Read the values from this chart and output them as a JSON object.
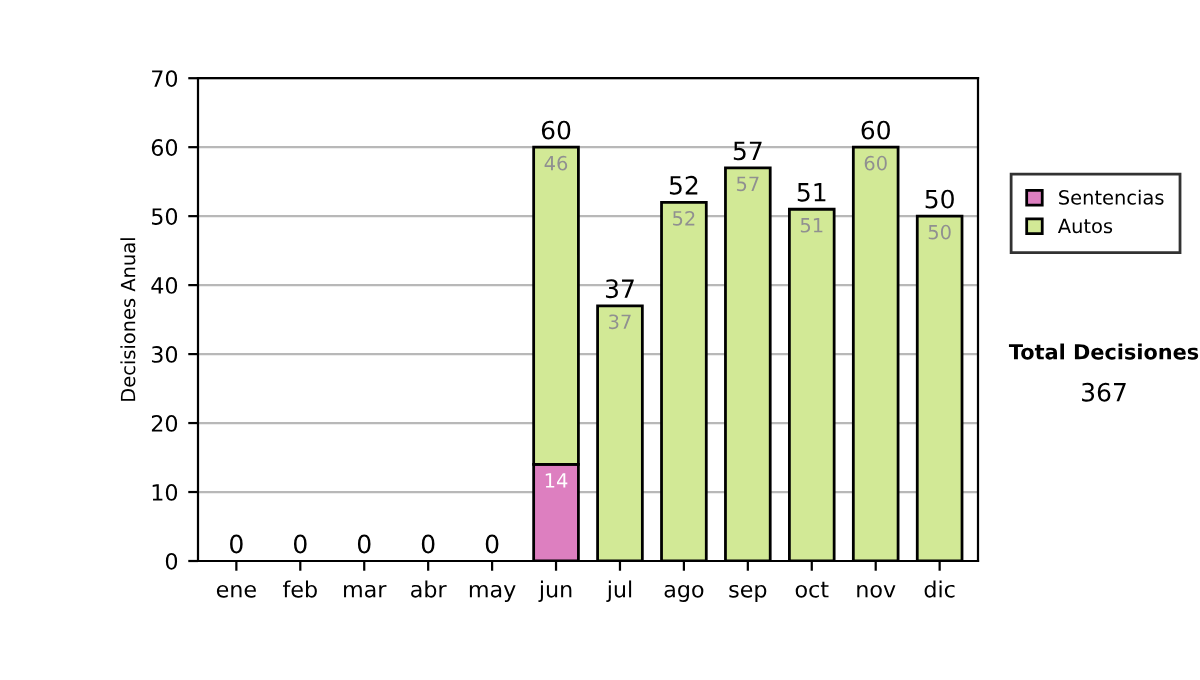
{
  "chart_data": {
    "type": "bar",
    "stacked": true,
    "ylabel": "Decisiones Anual",
    "categories": [
      "ene",
      "feb",
      "mar",
      "abr",
      "may",
      "jun",
      "jul",
      "ago",
      "sep",
      "oct",
      "nov",
      "dic"
    ],
    "series": [
      {
        "name": "Sentencias",
        "color": "#dd7fc0",
        "values": [
          0,
          0,
          0,
          0,
          0,
          14,
          0,
          0,
          0,
          0,
          0,
          0
        ],
        "value_labels": [
          null,
          null,
          null,
          null,
          null,
          "14",
          null,
          null,
          null,
          null,
          null,
          null
        ]
      },
      {
        "name": "Autos",
        "color": "#d2e996",
        "values": [
          0,
          0,
          0,
          0,
          0,
          46,
          37,
          52,
          57,
          51,
          60,
          50
        ],
        "value_labels": [
          null,
          null,
          null,
          null,
          null,
          "46",
          "37",
          "52",
          "57",
          "51",
          "60",
          "50"
        ]
      }
    ],
    "totals": [
      "0",
      "0",
      "0",
      "0",
      "0",
      "60",
      "37",
      "52",
      "57",
      "51",
      "60",
      "50"
    ],
    "ylim": [
      0,
      70
    ],
    "yticks": [
      0,
      10,
      20,
      30,
      40,
      50,
      60,
      70
    ],
    "grid": "y",
    "legend": "right",
    "annotations": [
      "Total Decisiones",
      "367"
    ]
  }
}
